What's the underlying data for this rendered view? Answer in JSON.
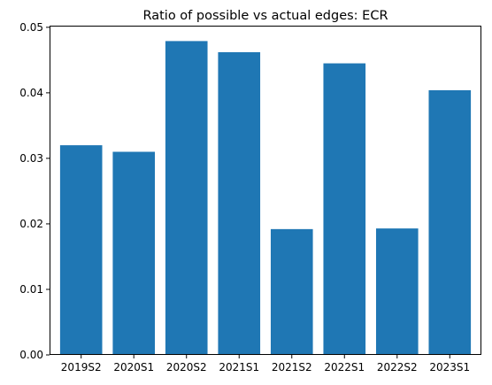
{
  "chart_data": {
    "type": "bar",
    "title": "Ratio of possible vs actual edges: ECR",
    "xlabel": "",
    "ylabel": "",
    "categories": [
      "2019S2",
      "2020S1",
      "2020S2",
      "2021S1",
      "2021S2",
      "2022S1",
      "2022S2",
      "2023S1"
    ],
    "values": [
      0.032,
      0.031,
      0.0479,
      0.0462,
      0.0192,
      0.0445,
      0.0193,
      0.0404
    ],
    "ylim": [
      0,
      0.05025
    ],
    "yticks": [
      0.0,
      0.01,
      0.02,
      0.03,
      0.04,
      0.05
    ],
    "ytick_labels": [
      "0.00",
      "0.01",
      "0.02",
      "0.03",
      "0.04",
      "0.05"
    ],
    "bar_color": "#1f77b4",
    "grid": false,
    "legend": "none"
  }
}
